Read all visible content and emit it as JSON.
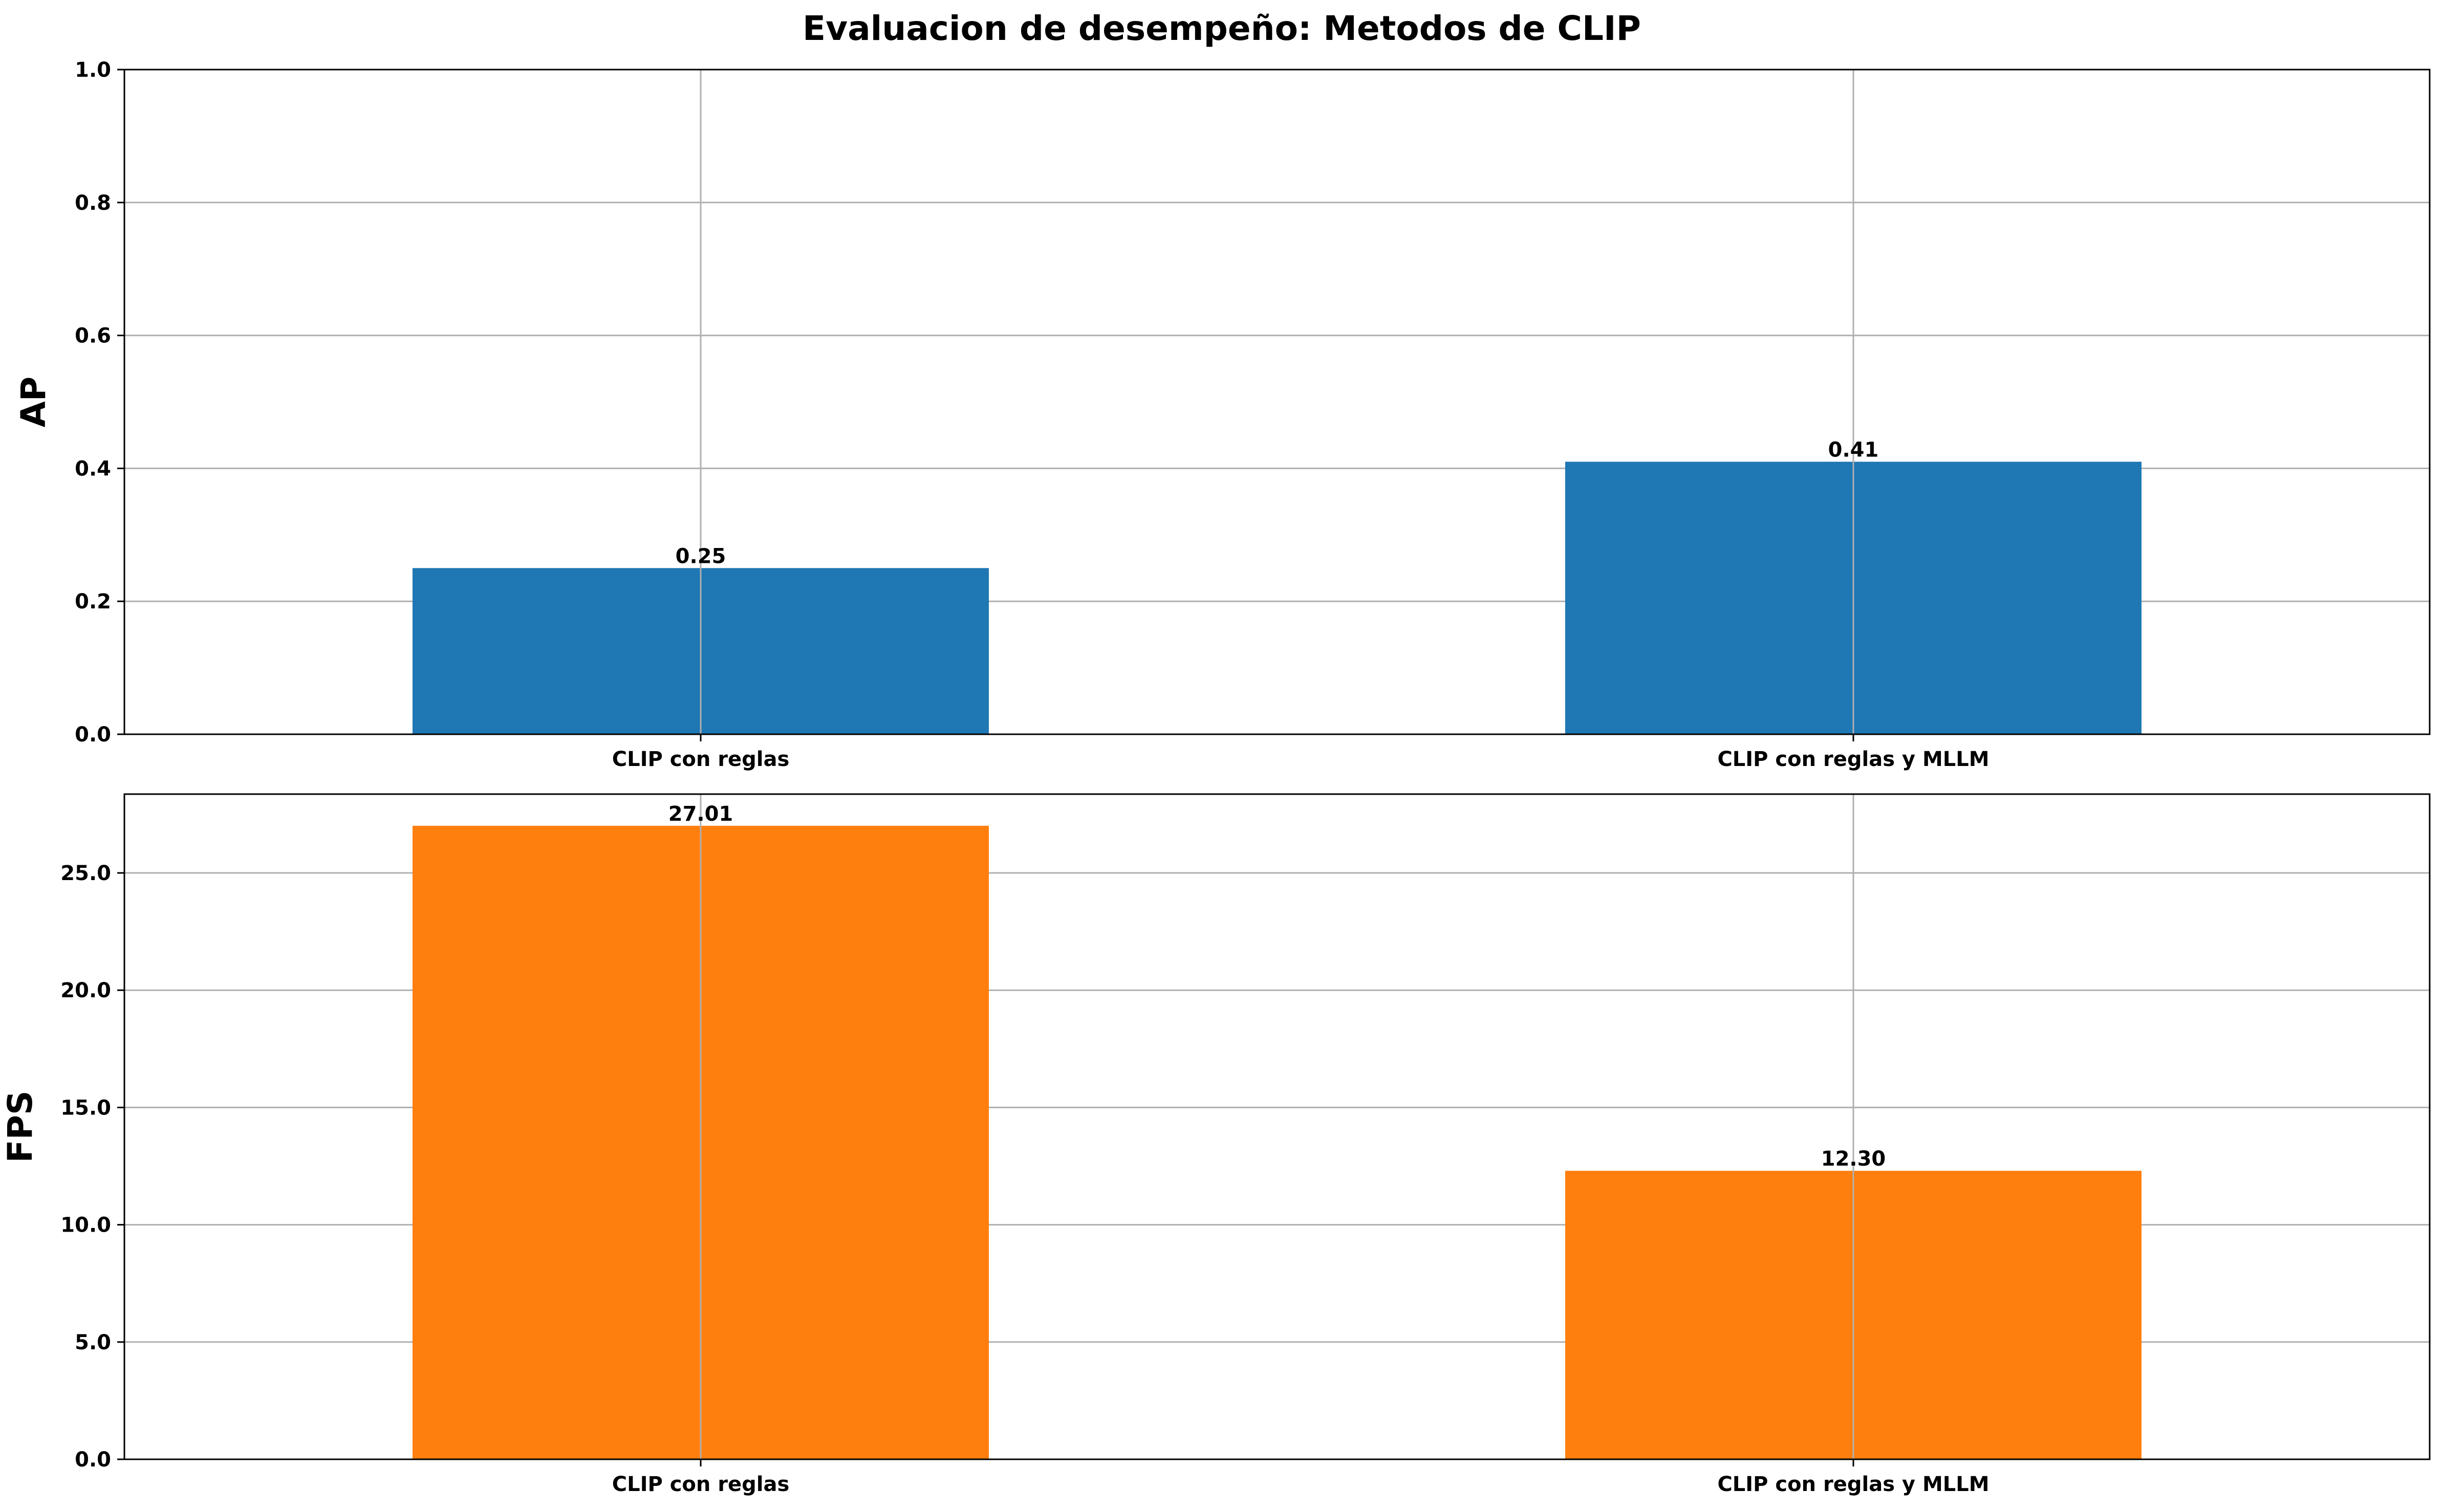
{
  "title": "Evaluacion de desempeño: Metodos de CLIP",
  "chart_data": [
    {
      "type": "bar",
      "categories": [
        "CLIP con reglas",
        "CLIP con reglas y MLLM"
      ],
      "values": [
        0.25,
        0.41
      ],
      "value_labels": [
        "0.25",
        "0.41"
      ],
      "ylabel": "AP",
      "ylim": [
        0,
        1.0
      ],
      "yticks": [
        0.0,
        0.2,
        0.4,
        0.6,
        0.8,
        1.0
      ],
      "ytick_labels": [
        "0.0",
        "0.2",
        "0.4",
        "0.6",
        "0.8",
        "1.0"
      ],
      "color": "#1f77b4",
      "grid": true
    },
    {
      "type": "bar",
      "categories": [
        "CLIP con reglas",
        "CLIP con reglas y MLLM"
      ],
      "values": [
        27.01,
        12.3
      ],
      "value_labels": [
        "27.01",
        "12.30"
      ],
      "ylabel": "FPS",
      "ylim": [
        0,
        28.36
      ],
      "yticks": [
        0.0,
        5.0,
        10.0,
        15.0,
        20.0,
        25.0
      ],
      "ytick_labels": [
        "0.0",
        "5.0",
        "10.0",
        "15.0",
        "20.0",
        "25.0"
      ],
      "color": "#ff7f0e",
      "grid": true
    }
  ]
}
